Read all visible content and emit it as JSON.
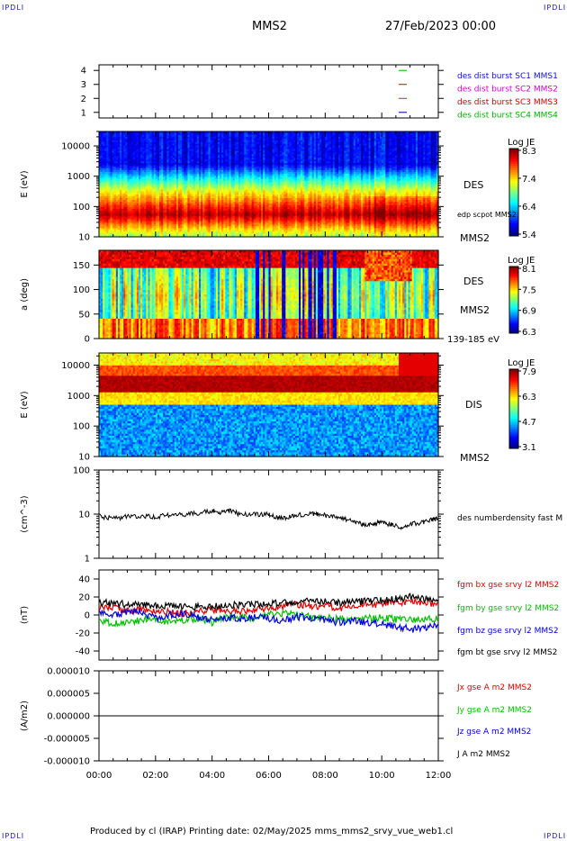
{
  "corners": {
    "tl": "IPDLI",
    "tr": "IPDLI",
    "bl": "IPDLI",
    "br": "IPDLI"
  },
  "header": {
    "spacecraft": "MMS2",
    "date": "27/Feb/2023 00:00"
  },
  "footer": {
    "text": "Produced by cl (IRAP)   Printing date: 02/May/2025   mms_mms2_srvy_vue_web1.cl"
  },
  "time_axis": {
    "labels": [
      "00:00",
      "02:00",
      "04:00",
      "06:00",
      "08:00",
      "10:00",
      "12:00"
    ],
    "range_hours": [
      0,
      12
    ]
  },
  "chart_data": [
    {
      "type": "line",
      "id": "burst",
      "yticks": [
        "1",
        "2",
        "3",
        "4"
      ],
      "legend": [
        {
          "text": "des dist burst SC1 MMS1",
          "color": "#1010d0"
        },
        {
          "text": "des dist burst SC2 MMS2",
          "color": "#d000d0"
        },
        {
          "text": "des dist burst SC3 MMS3",
          "color": "#d00000"
        },
        {
          "text": "des dist burst SC4 MMS4",
          "color": "#00b000"
        }
      ],
      "marks": [
        {
          "y": 4,
          "color": "#00b000"
        },
        {
          "y": 3,
          "color": "#d00000"
        },
        {
          "y": 2,
          "color": "#d000d0"
        },
        {
          "y": 1,
          "color": "#000080"
        }
      ]
    },
    {
      "type": "heatmap",
      "id": "des-energy",
      "ylabel": "E (eV)",
      "scale": "log",
      "ylim": [
        10,
        30000
      ],
      "yticks": [
        "10",
        "100",
        "1000",
        "10000"
      ],
      "instrument": "DES",
      "extra_label": "edp scpot MMS2",
      "sc": "MMS2",
      "colorbar": {
        "title": "Log JE",
        "ticks": [
          "8.3",
          "7.4",
          "6.4",
          "5.4"
        ]
      }
    },
    {
      "type": "heatmap",
      "id": "des-pitch",
      "ylabel": "a (deg)",
      "ylim": [
        0,
        180
      ],
      "yticks": [
        "0",
        "50",
        "100",
        "150"
      ],
      "instrument": "DES",
      "sc": "MMS2",
      "energy_range": "139-185 eV",
      "colorbar": {
        "title": "Log JE",
        "ticks": [
          "8.1",
          "7.5",
          "6.9",
          "6.3"
        ]
      }
    },
    {
      "type": "heatmap",
      "id": "dis-energy",
      "ylabel": "E (eV)",
      "scale": "log",
      "ylim": [
        10,
        25000
      ],
      "yticks": [
        "10",
        "100",
        "1000",
        "10000"
      ],
      "instrument": "DIS",
      "sc": "MMS2",
      "colorbar": {
        "title": "Log JE",
        "ticks": [
          "7.9",
          "6.3",
          "4.7",
          "3.1"
        ]
      }
    },
    {
      "type": "line",
      "id": "density",
      "ylabel": "(cm^-3)",
      "scale": "log",
      "ylim": [
        1,
        100
      ],
      "yticks": [
        "1",
        "10",
        "100"
      ],
      "series": [
        {
          "name": "des numberdensity fast M",
          "color": "#000000",
          "x": [
            0,
            0.5,
            1,
            1.5,
            2,
            2.5,
            3,
            3.5,
            4,
            4.3,
            4.6,
            5,
            5.5,
            6,
            6.3,
            6.6,
            7,
            7.5,
            7.8,
            8.2,
            8.6,
            9,
            9.3,
            9.6,
            9.9,
            10.2,
            10.5,
            10.8,
            11.1,
            11.4,
            11.7,
            12
          ],
          "y": [
            9,
            8,
            8.8,
            9,
            8.8,
            9.5,
            10,
            10.5,
            12,
            11,
            12,
            10,
            10,
            10,
            8.5,
            8,
            9.5,
            10,
            10,
            9,
            8,
            7,
            6,
            6,
            6.5,
            6,
            5.5,
            5,
            6,
            6.5,
            7.5,
            8
          ]
        }
      ]
    },
    {
      "type": "line",
      "id": "fgm",
      "ylabel": "(nT)",
      "ylim": [
        -50,
        50
      ],
      "yticks": [
        "-40",
        "-20",
        "0",
        "20",
        "40"
      ],
      "series": [
        {
          "name": "fgm bx gse srvy l2 MMS2",
          "color": "#e00000",
          "x": [
            0,
            0.5,
            1,
            1.5,
            2,
            2.5,
            3,
            3.5,
            4,
            4.5,
            5,
            5.5,
            6,
            6.5,
            7,
            7.5,
            8,
            8.5,
            9,
            9.5,
            10,
            10.5,
            11,
            11.5,
            12
          ],
          "y": [
            8,
            7,
            5,
            6,
            4,
            3,
            2,
            4,
            6,
            5,
            4,
            6,
            8,
            10,
            12,
            10,
            9,
            8,
            10,
            12,
            12,
            14,
            15,
            14,
            12
          ]
        },
        {
          "name": "fgm by gse srvy l2 MMS2",
          "color": "#00c000",
          "x": [
            0,
            0.5,
            1,
            1.5,
            2,
            2.5,
            3,
            3.5,
            4,
            4.5,
            5,
            5.5,
            6,
            6.5,
            7,
            7.5,
            8,
            8.5,
            9,
            9.5,
            10,
            10.5,
            11,
            11.5,
            12
          ],
          "y": [
            -6,
            -10,
            -8,
            -6,
            -4,
            -8,
            -6,
            -4,
            -8,
            -3,
            -2,
            -4,
            0,
            2,
            0,
            -2,
            -3,
            -5,
            -6,
            -4,
            -3,
            -5,
            -6,
            -4,
            -5
          ]
        },
        {
          "name": "fgm bz gse srvy l2 MMS2",
          "color": "#0000e0",
          "x": [
            0,
            0.5,
            1,
            1.5,
            2,
            2.5,
            3,
            3.5,
            4,
            4.5,
            5,
            5.5,
            6,
            6.5,
            7,
            7.5,
            8,
            8.5,
            9,
            9.5,
            10,
            10.5,
            11,
            11.5,
            12
          ],
          "y": [
            2,
            0,
            4,
            2,
            -4,
            0,
            2,
            -2,
            -6,
            -3,
            -4,
            -2,
            -4,
            -6,
            -2,
            -4,
            -6,
            -8,
            -6,
            -8,
            -10,
            -12,
            -16,
            -14,
            -10
          ]
        },
        {
          "name": "fgm bt gse srvy l2 MMS2",
          "color": "#000000",
          "x": [
            0,
            0.5,
            1,
            1.5,
            2,
            2.5,
            3,
            3.5,
            4,
            4.5,
            5,
            5.5,
            6,
            6.5,
            7,
            7.5,
            8,
            8.5,
            9,
            9.5,
            10,
            10.5,
            11,
            11.5,
            12
          ],
          "y": [
            14,
            13,
            12,
            11,
            10,
            11,
            10,
            9,
            10,
            11,
            11,
            12,
            13,
            14,
            14,
            15,
            15,
            14,
            15,
            15,
            16,
            18,
            20,
            18,
            17
          ]
        }
      ]
    },
    {
      "type": "line",
      "id": "current",
      "ylabel": "(A/m2)",
      "ylim": [
        -1e-05,
        1e-05
      ],
      "yticks": [
        "-0.000010",
        "-0.000005",
        "0.000000",
        "0.000005",
        "0.000010"
      ],
      "series": [
        {
          "name": "Jx gse A m2 MMS2",
          "color": "#e00000",
          "x": [
            0,
            12
          ],
          "y": [
            0,
            0
          ]
        },
        {
          "name": "Jy gse A m2 MMS2",
          "color": "#00c000",
          "x": [
            0,
            12
          ],
          "y": [
            0,
            0
          ]
        },
        {
          "name": "Jz gse A m2 MMS2",
          "color": "#0000e0",
          "x": [
            0,
            12
          ],
          "y": [
            0,
            0
          ]
        },
        {
          "name": "J A m2 MMS2",
          "color": "#000000",
          "x": [
            0,
            12
          ],
          "y": [
            0,
            0
          ]
        }
      ]
    }
  ]
}
